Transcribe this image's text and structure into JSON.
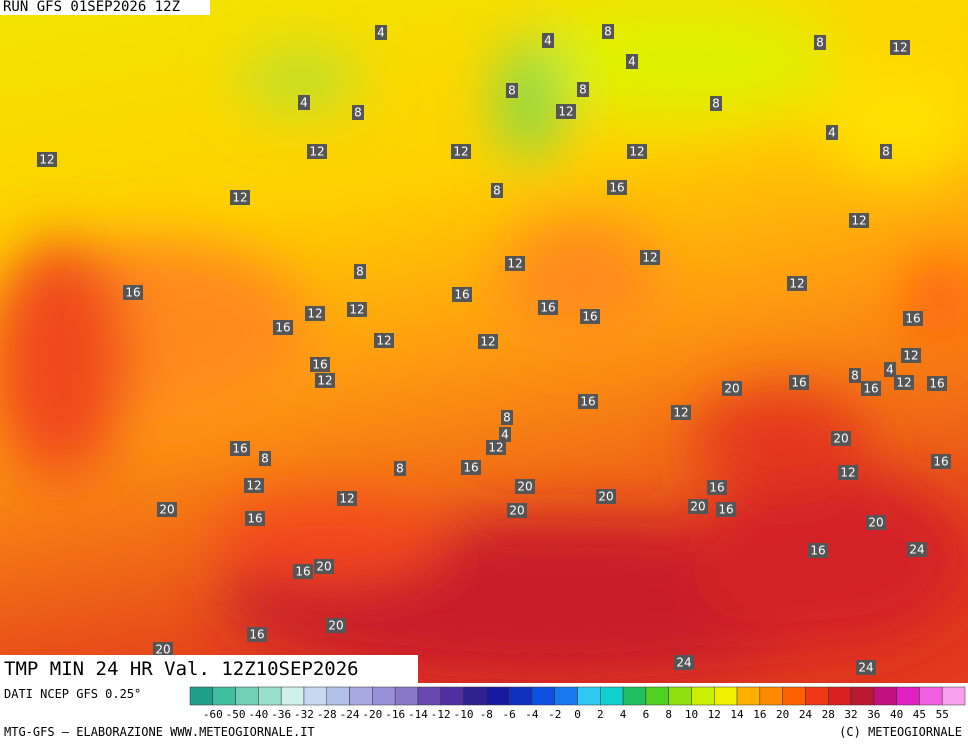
{
  "header": {
    "run": "RUN GFS 01SEP2026 12Z"
  },
  "title": "TMP MIN 24 HR Val. 12Z10SEP2026",
  "colorbar": {
    "source": "DATI NCEP GFS 0.25°",
    "labels": [
      -60,
      -50,
      -40,
      -36,
      -32,
      -28,
      -24,
      -20,
      -16,
      -14,
      -12,
      -10,
      -8,
      -6,
      -4,
      -2,
      0,
      2,
      4,
      6,
      8,
      10,
      12,
      14,
      16,
      20,
      24,
      28,
      32,
      36,
      40,
      45,
      55
    ]
  },
  "footer": {
    "left": "MTG-GFS — ELABORAZIONE WWW.METEOGIORNALE.IT",
    "right": "(C) METEOGIORNALE"
  },
  "map_labels": [
    12,
    12,
    12,
    16,
    16,
    12,
    12,
    12,
    8,
    16,
    12,
    4,
    8,
    4,
    4,
    8,
    4,
    8,
    12,
    8,
    12,
    8,
    8,
    4,
    8,
    12,
    12,
    8,
    16,
    12,
    12,
    12,
    16,
    16,
    16,
    12,
    12,
    16,
    12,
    4,
    8,
    16,
    12,
    16,
    20,
    16,
    16,
    12,
    8,
    4,
    12,
    20,
    16,
    12,
    16,
    8,
    8,
    16,
    12,
    12,
    20,
    20,
    16,
    20,
    16,
    20,
    16,
    20,
    20,
    24,
    16,
    16,
    20,
    16,
    20,
    20,
    24,
    24
  ]
}
